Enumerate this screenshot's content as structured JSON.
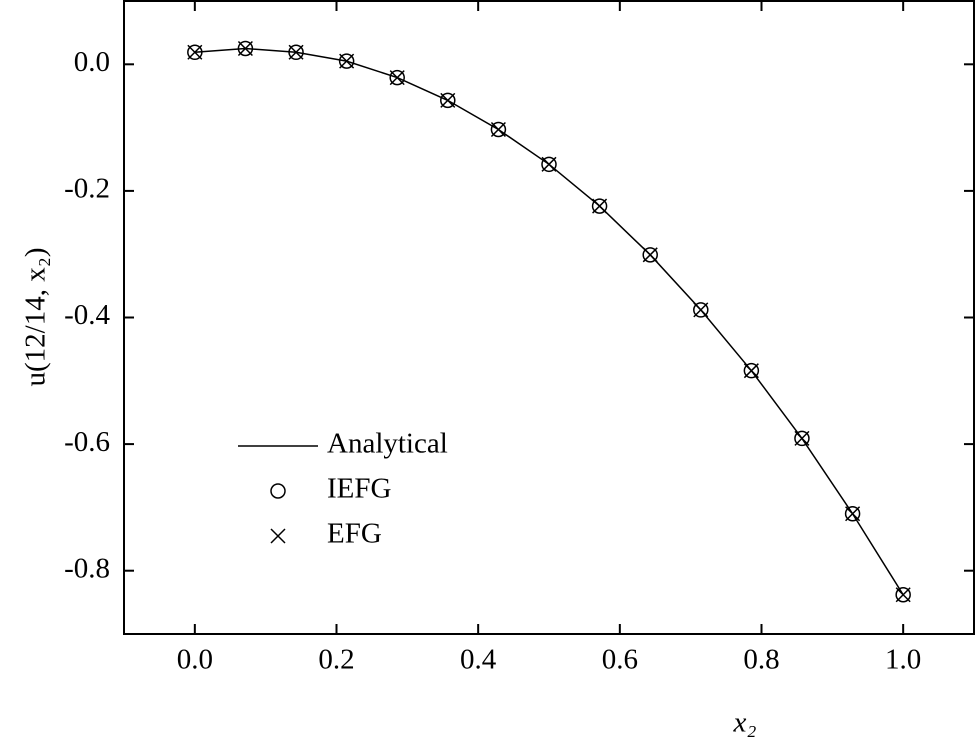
{
  "chart_data": {
    "type": "line",
    "x_label": "x₂",
    "y_label": "u(12/14, x₂)",
    "xlim": [
      -0.1,
      1.1
    ],
    "ylim": [
      -0.9,
      0.1
    ],
    "xticks": [
      {
        "value": 0,
        "label": "0.0"
      },
      0.2,
      0.4,
      0.6,
      0.8,
      {
        "value": 1,
        "label": "1.0"
      }
    ],
    "yticks": [
      {
        "value": 0,
        "label": "0.0"
      },
      -0.2,
      -0.4,
      -0.6,
      -0.8
    ],
    "legend": "lower left",
    "x": [
      0,
      0.0714,
      0.1429,
      0.2143,
      0.2857,
      0.3571,
      0.4286,
      0.5,
      0.5714,
      0.6429,
      0.7143,
      0.7857,
      0.8571,
      0.9286,
      1.0
    ],
    "series": [
      {
        "name": "Analytical",
        "color": "#000000",
        "marker": "line",
        "values": [
          0.019,
          0.025,
          0.019,
          0.005,
          -0.021,
          -0.057,
          -0.103,
          -0.158,
          -0.224,
          -0.301,
          -0.388,
          -0.484,
          -0.591,
          -0.71,
          -0.838
        ]
      },
      {
        "name": "IEFG",
        "color": "#000000",
        "marker": "circle",
        "values": [
          0.019,
          0.025,
          0.019,
          0.005,
          -0.021,
          -0.057,
          -0.103,
          -0.158,
          -0.224,
          -0.301,
          -0.388,
          -0.484,
          -0.591,
          -0.71,
          -0.838
        ]
      },
      {
        "name": "EFG",
        "color": "#000000",
        "marker": "cross",
        "values": [
          0.019,
          0.025,
          0.019,
          0.005,
          -0.021,
          -0.057,
          -0.103,
          -0.158,
          -0.224,
          -0.301,
          -0.388,
          -0.484,
          -0.591,
          -0.71,
          -0.838
        ]
      }
    ]
  }
}
